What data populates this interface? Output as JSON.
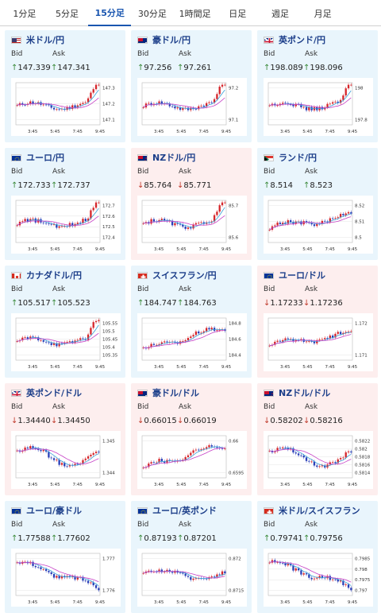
{
  "tabs": [
    {
      "label": "1分足"
    },
    {
      "label": "5分足"
    },
    {
      "label": "15分足",
      "active": true
    },
    {
      "label": "30分足"
    },
    {
      "label": "1時間足"
    },
    {
      "label": "日足"
    },
    {
      "label": "週足"
    },
    {
      "label": "月足"
    }
  ],
  "labels": {
    "bid": "Bid",
    "ask": "Ask"
  },
  "xticks": [
    "3:45",
    "5:45",
    "7:45",
    "9:45"
  ],
  "cards": [
    {
      "name": "usd-jpy",
      "title": "米ドル/円",
      "flag": "jp-us",
      "dir": "up",
      "bid": "147.339",
      "ask": "147.341",
      "yticks": [
        "147.3",
        "147.2",
        "147.1"
      ],
      "trend": "up-end"
    },
    {
      "name": "aud-jpy",
      "title": "豪ドル/円",
      "flag": "au",
      "dir": "up",
      "bid": "97.256",
      "ask": "97.261",
      "yticks": [
        "97.2",
        "97.1"
      ],
      "trend": "up-end"
    },
    {
      "name": "gbp-jpy",
      "title": "英ポンド/円",
      "flag": "gb",
      "dir": "up",
      "bid": "198.089",
      "ask": "198.096",
      "yticks": [
        "198",
        "197.8"
      ],
      "trend": "up-end"
    },
    {
      "name": "eur-jpy",
      "title": "ユーロ/円",
      "flag": "eu",
      "dir": "up",
      "bid": "172.733",
      "ask": "172.737",
      "yticks": [
        "172.7",
        "172.6",
        "172.5",
        "172.4"
      ],
      "trend": "up-end"
    },
    {
      "name": "nzd-jpy",
      "title": "NZドル/円",
      "flag": "nz",
      "dir": "down",
      "bid": "85.764",
      "ask": "85.771",
      "yticks": [
        "85.7",
        "85.6"
      ],
      "trend": "up-end"
    },
    {
      "name": "zar-jpy",
      "title": "ランド/円",
      "flag": "za",
      "dir": "up",
      "bid": "8.514",
      "ask": "8.523",
      "yticks": [
        "8.52",
        "8.51",
        "8.5"
      ],
      "trend": "flat-up"
    },
    {
      "name": "cad-jpy",
      "title": "カナダドル/円",
      "flag": "ca",
      "dir": "up",
      "bid": "105.517",
      "ask": "105.523",
      "yticks": [
        "105.55",
        "105.5",
        "105.45",
        "105.4",
        "105.35"
      ],
      "trend": "up-end"
    },
    {
      "name": "chf-jpy",
      "title": "スイスフラン/円",
      "flag": "ch",
      "dir": "up",
      "bid": "184.747",
      "ask": "184.763",
      "yticks": [
        "184.8",
        "184.6",
        "184.4"
      ],
      "trend": "up"
    },
    {
      "name": "eur-usd",
      "title": "ユーロ/ドル",
      "flag": "eu",
      "dir": "down",
      "bid": "1.17233",
      "ask": "1.17236",
      "yticks": [
        "1.172",
        "1.171"
      ],
      "trend": "flat-up"
    },
    {
      "name": "gbp-usd",
      "title": "英ポンド/ドル",
      "flag": "gb",
      "dir": "down",
      "bid": "1.34440",
      "ask": "1.34450",
      "yticks": [
        "1.345",
        "1.344"
      ],
      "trend": "wave"
    },
    {
      "name": "aud-usd",
      "title": "豪ドル/ドル",
      "flag": "au",
      "dir": "down",
      "bid": "0.66015",
      "ask": "0.66019",
      "yticks": [
        "0.66",
        "0.6595"
      ],
      "trend": "up"
    },
    {
      "name": "nzd-usd",
      "title": "NZドル/ドル",
      "flag": "nz",
      "dir": "down",
      "bid": "0.58202",
      "ask": "0.58216",
      "yticks": [
        "0.5822",
        "0.582",
        "0.5818",
        "0.5816",
        "0.5814"
      ],
      "trend": "wave"
    },
    {
      "name": "eur-aud",
      "title": "ユーロ/豪ドル",
      "flag": "eu",
      "dir": "up",
      "bid": "1.77588",
      "ask": "1.77602",
      "yticks": [
        "1.777",
        "1.776"
      ],
      "trend": "down"
    },
    {
      "name": "eur-gbp",
      "title": "ユーロ/英ポンド",
      "flag": "eu",
      "dir": "up",
      "bid": "0.87193",
      "ask": "0.87201",
      "yticks": [
        "0.872",
        "0.8715"
      ],
      "trend": "flat"
    },
    {
      "name": "usd-chf",
      "title": "米ドル/スイスフラン",
      "flag": "ch",
      "dir": "up",
      "bid": "0.79741",
      "ask": "0.79756",
      "yticks": [
        "0.7985",
        "0.798",
        "0.7975",
        "0.797"
      ],
      "trend": "down"
    }
  ]
}
